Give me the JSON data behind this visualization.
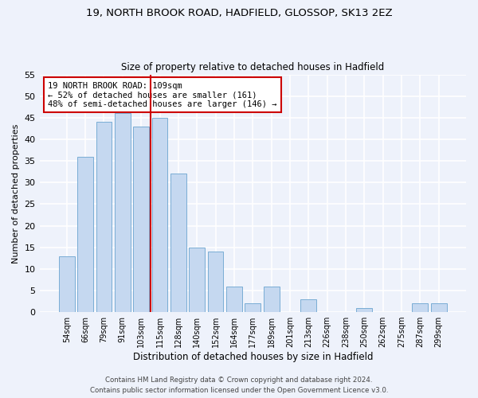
{
  "title_line1": "19, NORTH BROOK ROAD, HADFIELD, GLOSSOP, SK13 2EZ",
  "title_line2": "Size of property relative to detached houses in Hadfield",
  "xlabel": "Distribution of detached houses by size in Hadfield",
  "ylabel": "Number of detached properties",
  "categories": [
    "54sqm",
    "66sqm",
    "79sqm",
    "91sqm",
    "103sqm",
    "115sqm",
    "128sqm",
    "140sqm",
    "152sqm",
    "164sqm",
    "177sqm",
    "189sqm",
    "201sqm",
    "213sqm",
    "226sqm",
    "238sqm",
    "250sqm",
    "262sqm",
    "275sqm",
    "287sqm",
    "299sqm"
  ],
  "values": [
    13,
    36,
    44,
    46,
    43,
    45,
    32,
    15,
    14,
    6,
    2,
    6,
    0,
    3,
    0,
    0,
    1,
    0,
    0,
    2,
    2
  ],
  "bar_color": "#c5d8f0",
  "bar_edge_color": "#7aadd4",
  "property_size": 109,
  "annotation_text_line1": "19 NORTH BROOK ROAD: 109sqm",
  "annotation_text_line2": "← 52% of detached houses are smaller (161)",
  "annotation_text_line3": "48% of semi-detached houses are larger (146) →",
  "annotation_box_color": "#ffffff",
  "annotation_box_edge": "#cc0000",
  "ylim": [
    0,
    55
  ],
  "yticks": [
    0,
    5,
    10,
    15,
    20,
    25,
    30,
    35,
    40,
    45,
    50,
    55
  ],
  "background_color": "#eef2fb",
  "grid_color": "#ffffff",
  "footer_line1": "Contains HM Land Registry data © Crown copyright and database right 2024.",
  "footer_line2": "Contains public sector information licensed under the Open Government Licence v3.0."
}
